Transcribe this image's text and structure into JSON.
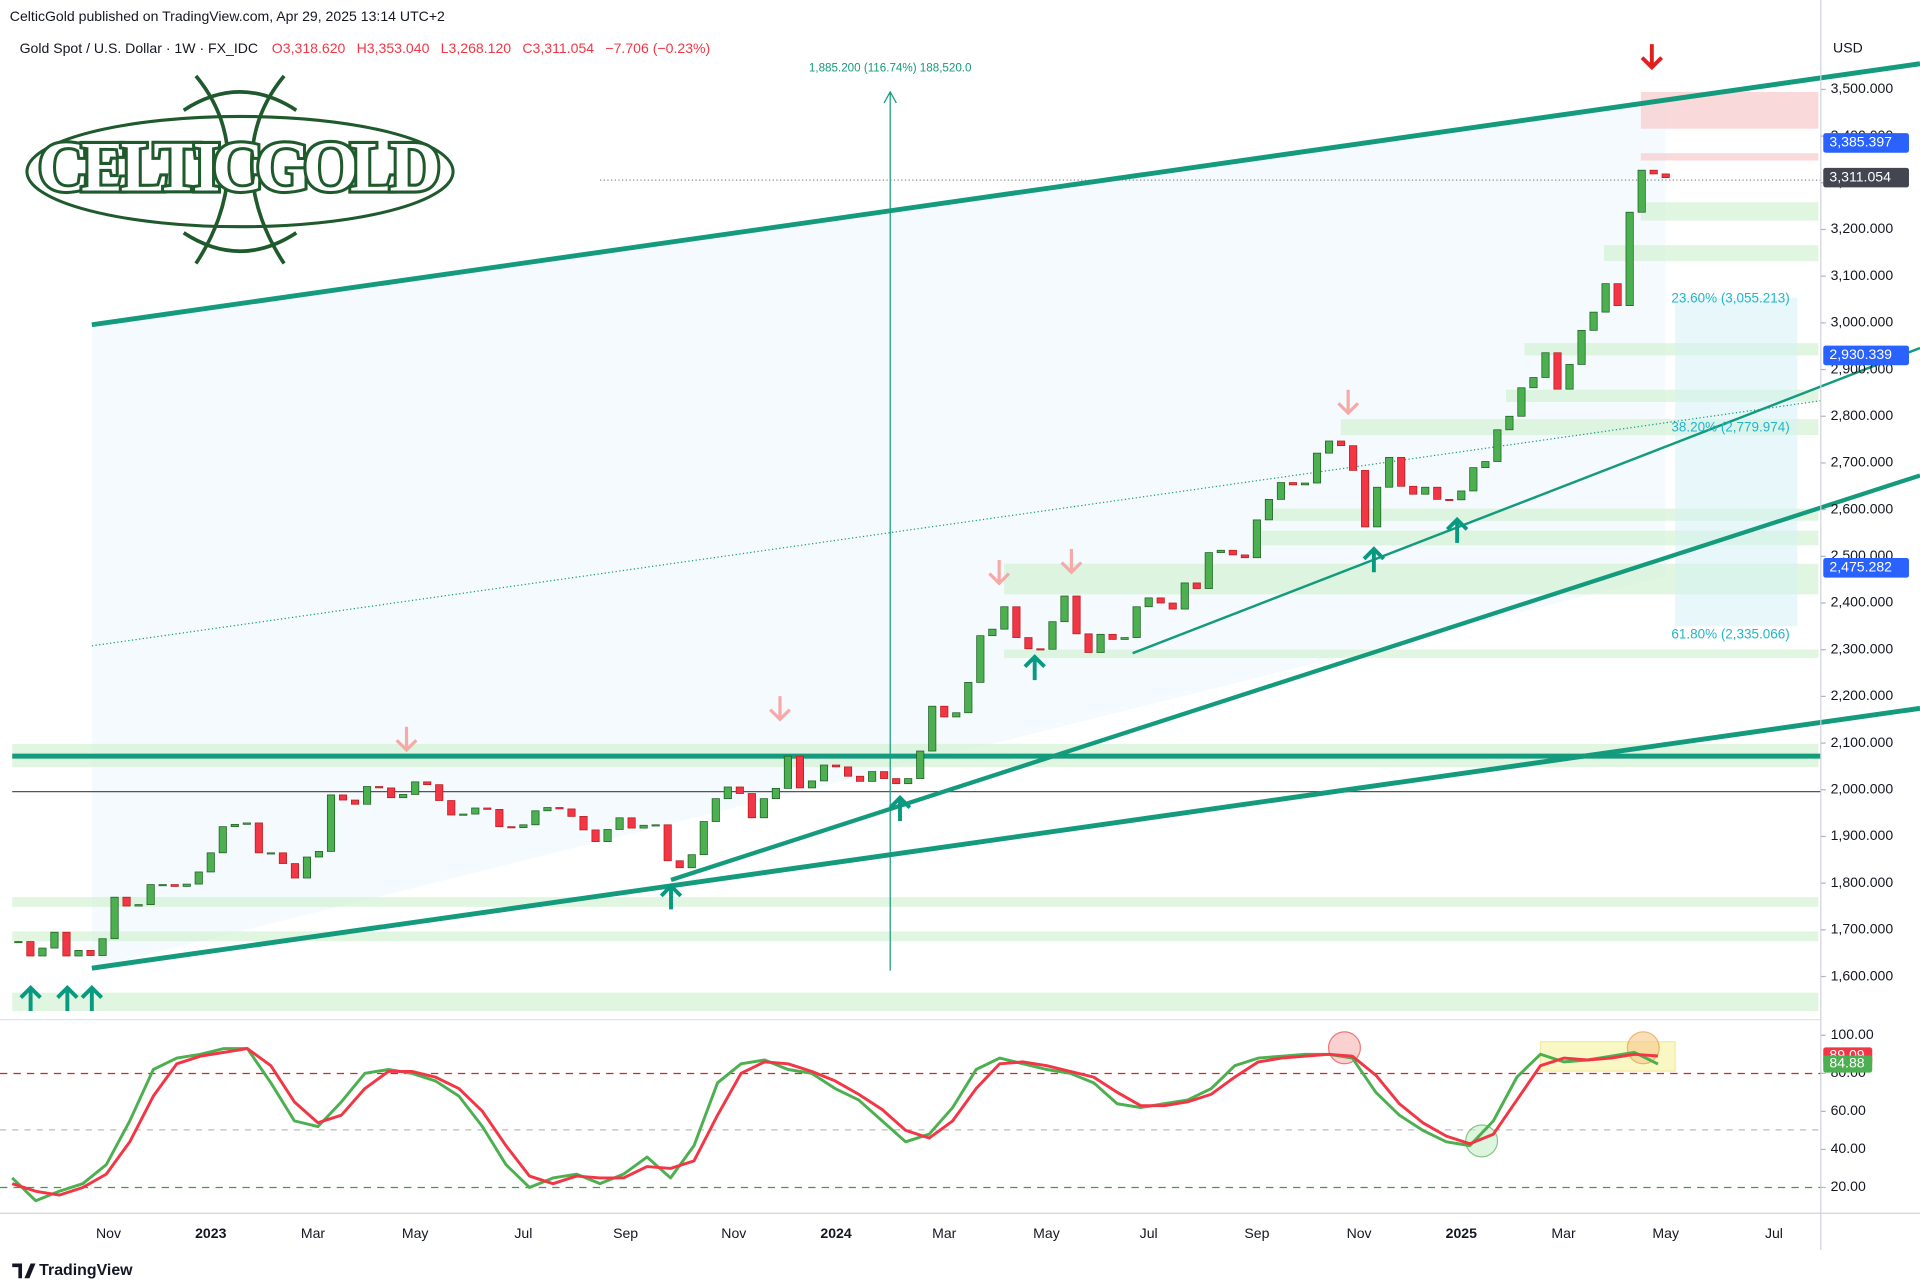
{
  "header": {
    "publisher": "CelticGold published on TradingView.com, Apr 29, 2025 13:14 UTC+2",
    "symbol": "Gold Spot / U.S. Dollar · 1W · FX_IDC",
    "ohlc": [
      "O3,318.620",
      "H3,353.040",
      "L3,268.120",
      "C3,311.054",
      "−7.706 (−0.23%)"
    ]
  },
  "logo": "CELTICGOLD",
  "footer": "TradingView",
  "chart_data": [
    {
      "type": "candlestick",
      "currency": "USD",
      "up_color": "#4caf50",
      "down_color": "#f23645",
      "close": [
        1675,
        1644,
        1661,
        1695,
        1644,
        1656,
        1645,
        1681,
        1770,
        1751,
        1754,
        1797,
        1797,
        1793,
        1798,
        1824,
        1865,
        1921,
        1926,
        1929,
        1865,
        1865,
        1842,
        1811,
        1856,
        1868,
        1989,
        1978,
        1969,
        2007,
        2004,
        1983,
        1990,
        2017,
        2011,
        1977,
        1946,
        1948,
        1961,
        1958,
        1921,
        1919,
        1925,
        1955,
        1962,
        1959,
        1943,
        1914,
        1889,
        1915,
        1940,
        1918,
        1924,
        1925,
        1848,
        1833,
        1861,
        1932,
        1981,
        2006,
        1992,
        1940,
        1981,
        2003,
        2072,
        2004,
        2019,
        2053,
        2049,
        2029,
        2018,
        2039,
        2024,
        2013,
        2024,
        2083,
        2179,
        2156,
        2165,
        2230,
        2330,
        2344,
        2392,
        2326,
        2302,
        2301,
        2360,
        2415,
        2334,
        2294,
        2333,
        2322,
        2326,
        2392,
        2411,
        2400,
        2387,
        2443,
        2431,
        2508,
        2513,
        2503,
        2497,
        2578,
        2622,
        2658,
        2653,
        2657,
        2721,
        2747,
        2737,
        2684,
        2563,
        2648,
        2712,
        2650,
        2633,
        2648,
        2622,
        2621,
        2640,
        2690,
        2703,
        2771,
        2800,
        2861,
        2883,
        2936,
        2858,
        2911,
        2984,
        3023,
        3084,
        3037,
        3237,
        3327,
        3319,
        3311.054
      ],
      "ylim": [
        1513,
        3639
      ],
      "yticks": [
        {
          "value": 1600,
          "label": "1,600.000"
        },
        {
          "value": 1700,
          "label": "1,700.000"
        },
        {
          "value": 1800,
          "label": "1,800.000"
        },
        {
          "value": 1900,
          "label": "1,900.000"
        },
        {
          "value": 2000,
          "label": "2,000.000"
        },
        {
          "value": 2100,
          "label": "2,100.000"
        },
        {
          "value": 2200,
          "label": "2,200.000"
        },
        {
          "value": 2300,
          "label": "2,300.000"
        },
        {
          "value": 2400,
          "label": "2,400.000"
        },
        {
          "value": 2500,
          "label": "2,500.000"
        },
        {
          "value": 2600,
          "label": "2,600.000"
        },
        {
          "value": 2700,
          "label": "2,700.000"
        },
        {
          "value": 2800,
          "label": "2,800.000"
        },
        {
          "value": 2900,
          "label": "2,900.000"
        },
        {
          "value": 3000,
          "label": "3,000.000"
        },
        {
          "value": 3100,
          "label": "3,100.000"
        },
        {
          "value": 3200,
          "label": "3,200.000"
        },
        {
          "value": 3300,
          "label": "3,300.000"
        },
        {
          "value": 3400,
          "label": "3,400.000"
        },
        {
          "value": 3500,
          "label": "3,500.000"
        }
      ],
      "xticks": [
        "Nov",
        "2023",
        "Mar",
        "May",
        "Jul",
        "Sep",
        "Nov",
        "2024",
        "Mar",
        "May",
        "Jul",
        "Sep",
        "Nov",
        "2025",
        "Mar",
        "May",
        "Jul"
      ],
      "price_tags": [
        {
          "value": 3385.397,
          "label": "3,385.397",
          "color": "#2962ff"
        },
        {
          "value": 3311.054,
          "label": "3,311.054",
          "color": "#434651"
        },
        {
          "value": 2930.339,
          "label": "2,930.339",
          "color": "#2962ff"
        },
        {
          "value": 2475.282,
          "label": "2,475.282",
          "color": "#2962ff"
        }
      ],
      "annotations": [
        "1,885.200 (116.74%) 188,520.0",
        "23.60% (3,055.213)",
        "38.20% (2,779.974)",
        "61.80% (2,335.066)"
      ]
    },
    {
      "type": "line",
      "series": [
        {
          "color": "#4caf50",
          "values": [
            25,
            13,
            18,
            22,
            32,
            55,
            82,
            88,
            90,
            93,
            93,
            75,
            55,
            52,
            65,
            80,
            82,
            80,
            76,
            68,
            52,
            32,
            20,
            25,
            27,
            22,
            27,
            36,
            25,
            42,
            75,
            85,
            87,
            82,
            80,
            72,
            66,
            55,
            44,
            48,
            62,
            82,
            88,
            85,
            82,
            80,
            75,
            64,
            62,
            64,
            66,
            72,
            84,
            88,
            89,
            90,
            90,
            88,
            70,
            58,
            50,
            44,
            42,
            55,
            78,
            90,
            86,
            87,
            89,
            91,
            84.88
          ]
        },
        {
          "color": "#f23645",
          "values": [
            22,
            18,
            16,
            20,
            27,
            44,
            68,
            85,
            89,
            91,
            93,
            84,
            65,
            54,
            58,
            72,
            81,
            81,
            78,
            72,
            60,
            42,
            26,
            22,
            26,
            25,
            25,
            31,
            30,
            34,
            58,
            80,
            86,
            85,
            81,
            76,
            69,
            61,
            50,
            46,
            55,
            72,
            85,
            86,
            84,
            81,
            78,
            70,
            63,
            63,
            65,
            69,
            78,
            86,
            88,
            89,
            90,
            89,
            79,
            64,
            54,
            47,
            43,
            48,
            66,
            84,
            88,
            87,
            88,
            90,
            89.09
          ]
        }
      ],
      "ylim": [
        10,
        105
      ],
      "yticks": [
        {
          "value": 20,
          "label": "20.00"
        },
        {
          "value": 40,
          "label": "40.00"
        },
        {
          "value": 60,
          "label": "60.00"
        },
        {
          "value": 80,
          "label": "80.00"
        },
        {
          "value": 100,
          "label": "100.00"
        }
      ],
      "value_tags": [
        {
          "value": 89.09,
          "label": "89.09",
          "color": "#f23645"
        },
        {
          "value": 84.88,
          "label": "84.88",
          "color": "#4caf50"
        }
      ]
    }
  ]
}
